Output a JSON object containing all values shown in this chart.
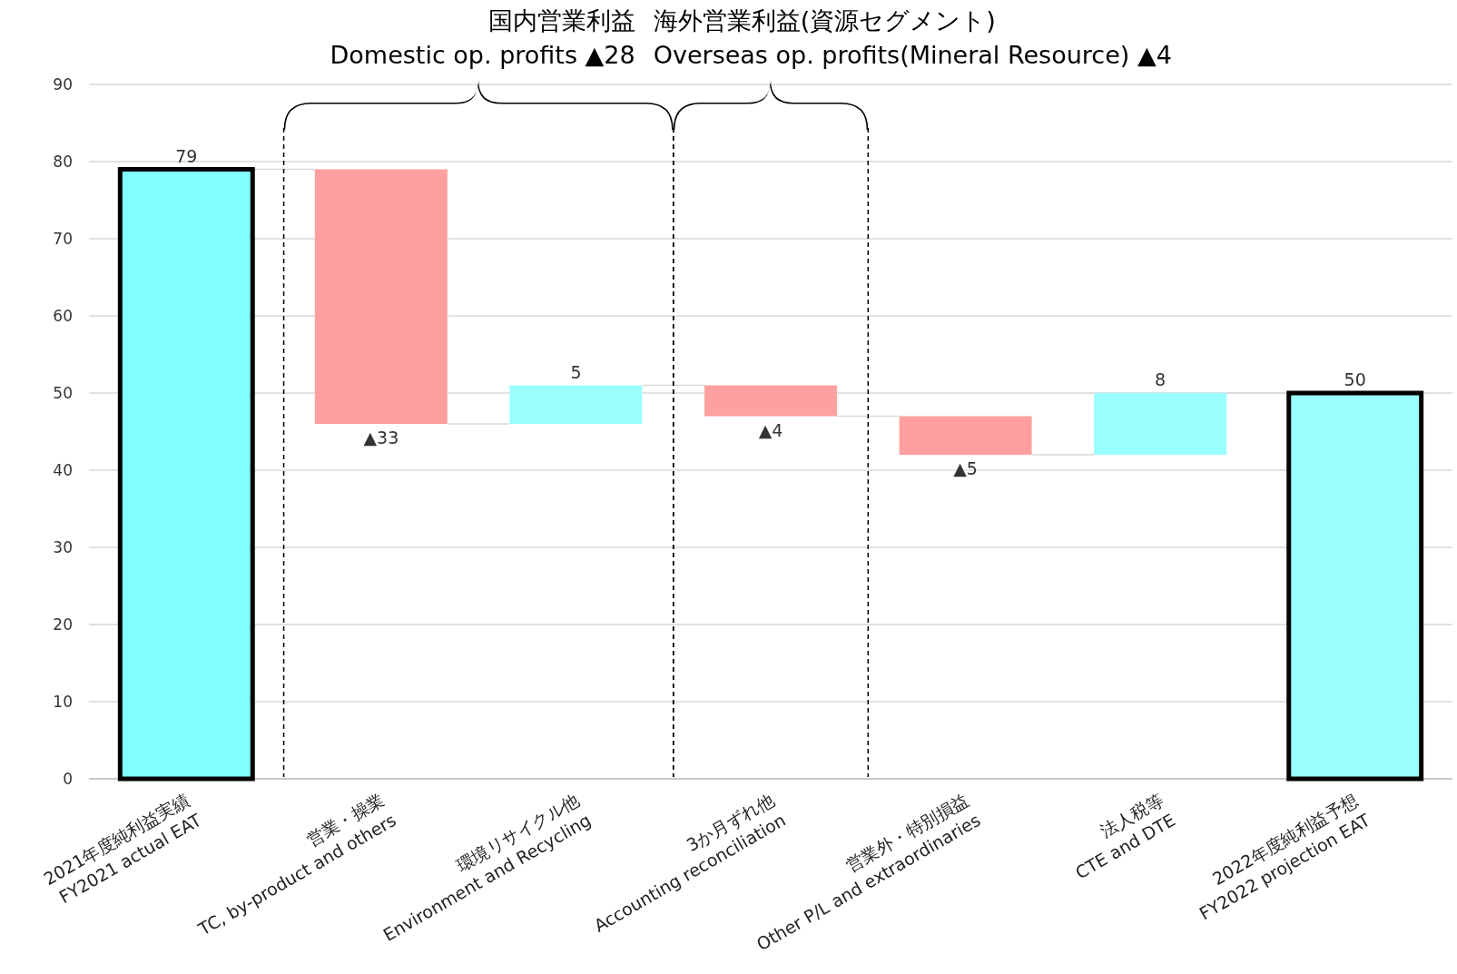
{
  "chart_data": {
    "type": "bar",
    "categories": [
      "2021年度純利益実績\nFY2021 actual EAT",
      "営業・操業\nTC, by-product and others",
      "環境リサイクル他\nEnvironment and Recycling",
      "3か月ずれ他\nAccounting reconciliation",
      "営業外・特別損益\nOther P/L and extraordinaries",
      "法人税等\nCTE and DTE",
      "2022年度純利益予想\nFY2022 projection EAT"
    ],
    "values": [
      79,
      -33,
      5,
      -4,
      -5,
      8,
      50
    ],
    "base": [
      0,
      79,
      46,
      51,
      47,
      42,
      0
    ],
    "colors": [
      "#7fffff",
      "#ff9f9f",
      "#99ffff",
      "#ff9f9f",
      "#ff9f9f",
      "#99ffff",
      "#99ffff"
    ],
    "value_labels": [
      "79",
      "▲33",
      "5",
      "▲4",
      "▲5",
      "8",
      "50"
    ],
    "ylim": [
      0,
      90
    ],
    "yticks": [
      0,
      10,
      20,
      30,
      40,
      50,
      60,
      70,
      80,
      90
    ],
    "grid": "y",
    "annotations": [
      "国内営業利益\nDomestic op. profits ▲28",
      "海外営業利益(資源セグメント)\nOverseas op. profits(Mineral Resource) ▲4"
    ]
  }
}
